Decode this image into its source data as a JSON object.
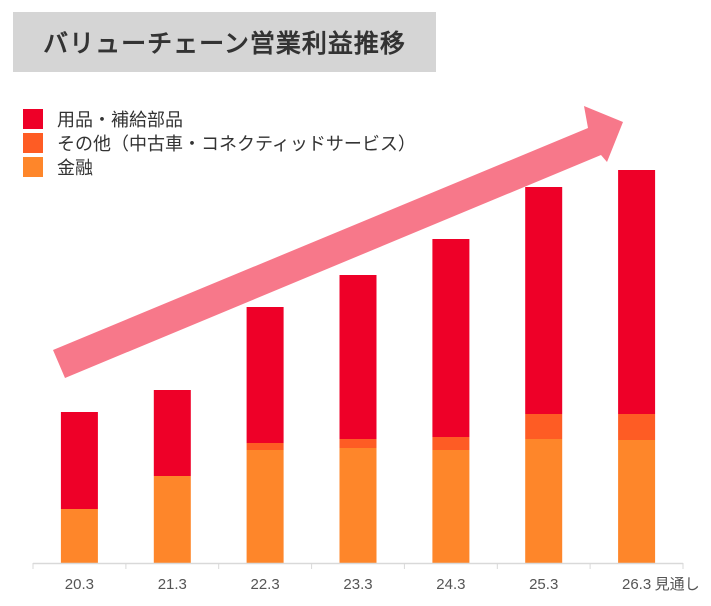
{
  "chart_data": {
    "type": "bar",
    "stacked": true,
    "title": "バリューチェーン営業利益推移",
    "xlabel": "",
    "ylabel": "",
    "categories": [
      "20.3",
      "21.3",
      "22.3",
      "23.3",
      "24.3",
      "25.3",
      "26.3"
    ],
    "category_suffix_last": "見通し",
    "units_note": "relative units (no y-axis shown)",
    "ylim": [
      0,
      400
    ],
    "grid": false,
    "legend_position": "top-left",
    "series": [
      {
        "name": "金融",
        "color": "#fe862a",
        "values": [
          54,
          87,
          113,
          115,
          113,
          124,
          123
        ]
      },
      {
        "name": "その他（中古車・コネクティッドサービス）",
        "color": "#fe5c24",
        "values": [
          0,
          0,
          7,
          9,
          13,
          25,
          26
        ]
      },
      {
        "name": "用品・補給部品",
        "color": "#ee0028",
        "values": [
          97,
          86,
          136,
          164,
          198,
          227,
          244
        ]
      }
    ],
    "legend_order": [
      "用品・補給部品",
      "その他（中古車・コネクティッドサービス）",
      "金融"
    ],
    "annotations": [
      {
        "type": "arrow",
        "meaning": "upward trend",
        "color": "#f7788a"
      }
    ]
  }
}
